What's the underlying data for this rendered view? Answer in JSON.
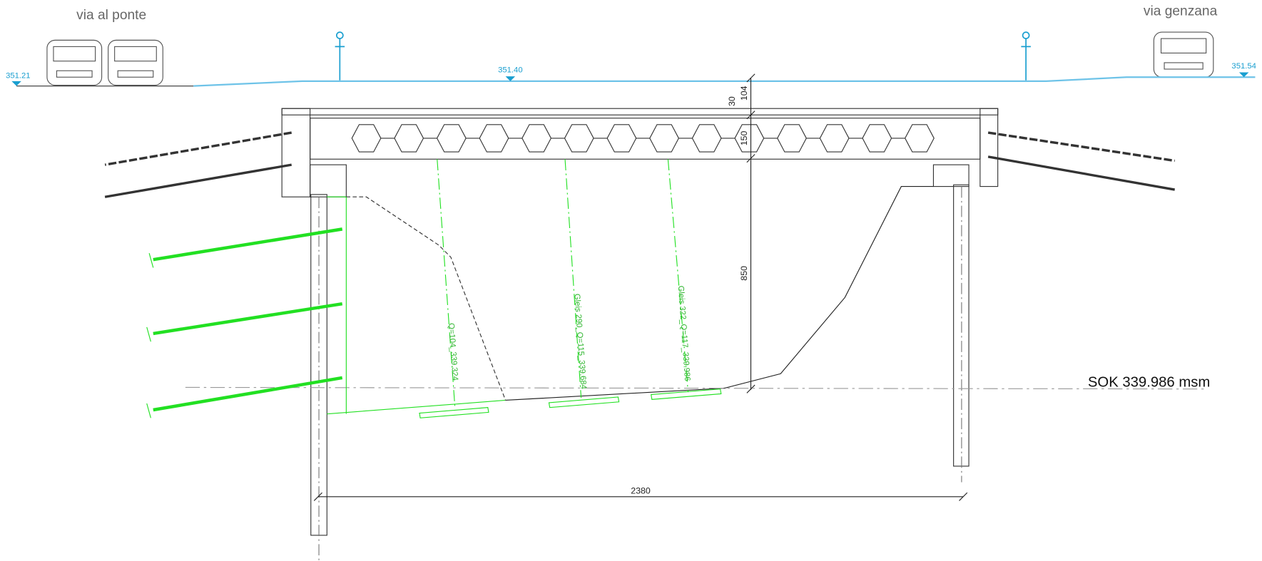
{
  "streets": {
    "left": "via al ponte",
    "right": "via genzana"
  },
  "levels": {
    "left": "351.21",
    "middle": "351.40",
    "right": "351.54"
  },
  "dimensions": {
    "pavement": "30",
    "slab": "104",
    "beam": "150",
    "height": "850",
    "span": "2380"
  },
  "annotations": {
    "sok": "SOK 339.986 msm",
    "track_1": "Q=104_339.324",
    "track_2": "Gleis 290_Q=115_339.684",
    "track_3": "Gleis 322_Q=117_339.986"
  }
}
